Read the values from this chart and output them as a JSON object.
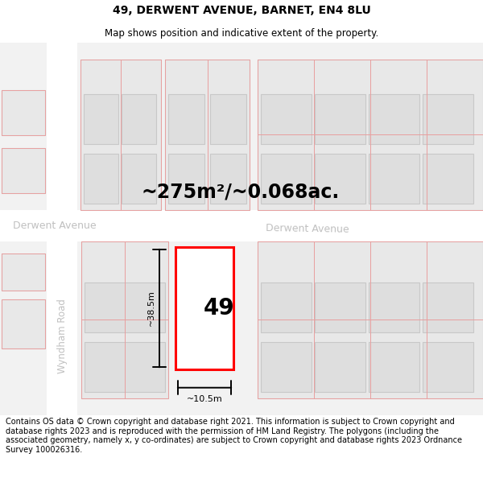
{
  "title": "49, DERWENT AVENUE, BARNET, EN4 8LU",
  "subtitle": "Map shows position and indicative extent of the property.",
  "area_label": "~275m²/~0.068ac.",
  "property_number": "49",
  "dim_height": "~38.5m",
  "dim_width": "~10.5m",
  "street_label_left": "Derwent Avenue",
  "street_label_center": "Derwent Avenue",
  "road_label_vert": "Wyndham Road",
  "footer_text": "Contains OS data © Crown copyright and database right 2021. This information is subject to Crown copyright and database rights 2023 and is reproduced with the permission of HM Land Registry. The polygons (including the associated geometry, namely x, y co-ordinates) are subject to Crown copyright and database rights 2023 Ordnance Survey 100026316.",
  "bg_color": "#f2f2f2",
  "road_color": "#ffffff",
  "block_fill": "#e8e8e8",
  "block_edge": "#cccccc",
  "inner_fill": "#dedede",
  "inner_edge": "#c8c8c8",
  "pink": "#e8a0a0",
  "plot_color": "#ff0000",
  "plot_fill": "#ffffff",
  "dim_color": "#000000",
  "street_color": "#c0c0c0",
  "title_fontsize": 10,
  "subtitle_fontsize": 8.5,
  "area_fontsize": 17,
  "num_fontsize": 20,
  "dim_fontsize": 8,
  "street_fontsize": 9,
  "road_fontsize": 8.5,
  "footer_fontsize": 7
}
